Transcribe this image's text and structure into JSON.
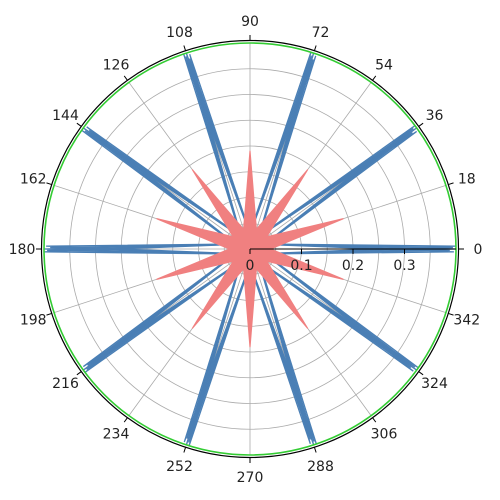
{
  "chart_data": {
    "type": "polar",
    "angle_unit": "degrees",
    "angle_tick_labels": [
      "0",
      "18",
      "36",
      "54",
      "72",
      "90",
      "108",
      "126",
      "144",
      "162",
      "180",
      "198",
      "216",
      "234",
      "252",
      "270",
      "288",
      "306",
      "324",
      "342"
    ],
    "radial_tick_labels": [
      "0",
      "0.1",
      "0.2",
      "0.3"
    ],
    "rlim": [
      0,
      0.4
    ],
    "grid": true,
    "series": [
      {
        "color": "#4a7fb5",
        "style": "outline",
        "lobes": 10,
        "peak_angles_deg": [
          0,
          36,
          72,
          108,
          144,
          180,
          216,
          252,
          288,
          324
        ],
        "peak_radius": 0.4,
        "trough_radius": 0.03
      },
      {
        "color": "#f08080",
        "style": "filled",
        "lobes": 10,
        "peak_angles_deg": [
          18,
          54,
          90,
          126,
          162,
          198,
          234,
          270,
          306,
          342
        ],
        "peak_radius": 0.19,
        "trough_radius": 0.04
      }
    ],
    "colors": {
      "outer_ring": "#33cc33",
      "outer_border": "#000000",
      "grid": "#aaaaaa",
      "axis": "#000000"
    }
  }
}
